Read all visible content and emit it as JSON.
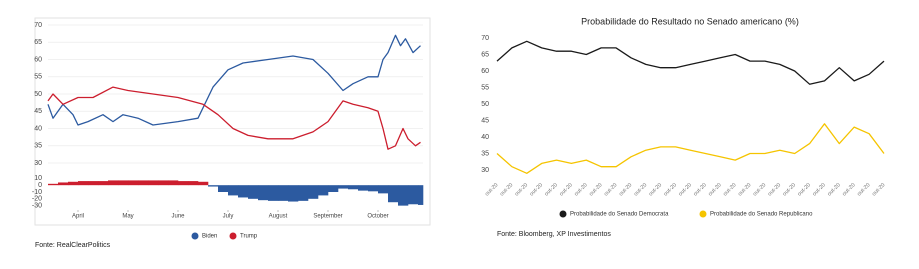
{
  "chart_data": [
    {
      "type": "line",
      "series": [
        {
          "name": "Biden",
          "color": "#2c5aa0",
          "x": [
            0.4,
            0.5,
            0.7,
            0.9,
            1.0,
            1.2,
            1.5,
            1.7,
            1.9,
            2.2,
            2.5,
            3.0,
            3.4,
            3.7,
            4.0,
            4.3,
            4.8,
            5.3,
            5.7,
            6.0,
            6.3,
            6.5,
            6.8,
            7.0,
            7.1,
            7.2,
            7.35,
            7.45,
            7.55,
            7.7,
            7.85
          ],
          "values": [
            47,
            43,
            47,
            44,
            41,
            42,
            44,
            42,
            44,
            43,
            41,
            42,
            43,
            52,
            57,
            59,
            60,
            61,
            60,
            56,
            51,
            53,
            55,
            55,
            60,
            62,
            67,
            64,
            66,
            62,
            64
          ]
        },
        {
          "name": "Trump",
          "color": "#cc1e2e",
          "x": [
            0.4,
            0.5,
            0.7,
            1.0,
            1.3,
            1.7,
            2.0,
            2.5,
            3.0,
            3.5,
            3.8,
            4.1,
            4.4,
            4.8,
            5.3,
            5.7,
            6.0,
            6.3,
            6.5,
            6.8,
            7.0,
            7.1,
            7.2,
            7.35,
            7.5,
            7.6,
            7.75,
            7.85
          ],
          "values": [
            48,
            50,
            47,
            49,
            49,
            52,
            51,
            50,
            49,
            47,
            44,
            40,
            38,
            37,
            37,
            39,
            42,
            48,
            47,
            46,
            45,
            40,
            34,
            35,
            40,
            37,
            35,
            36
          ]
        }
      ],
      "xlim": [
        0.4,
        7.9
      ],
      "xticks": [
        {
          "value": 1,
          "label": "April"
        },
        {
          "value": 2,
          "label": "May"
        },
        {
          "value": 3,
          "label": "June"
        },
        {
          "value": 4,
          "label": "July"
        },
        {
          "value": 5,
          "label": "August"
        },
        {
          "value": 6,
          "label": "September"
        },
        {
          "value": 7,
          "label": "October"
        }
      ],
      "ylim": [
        30,
        70
      ],
      "yticks": [
        30,
        35,
        40,
        45,
        50,
        55,
        60,
        65,
        70
      ],
      "grid": true,
      "legend": "bottom",
      "source": "Fonte: RealClearPolitics"
    },
    {
      "type": "bar",
      "x": [
        0.4,
        0.6,
        0.8,
        1.0,
        1.2,
        1.4,
        1.6,
        1.8,
        2.0,
        2.2,
        2.4,
        2.6,
        2.8,
        3.0,
        3.2,
        3.4,
        3.6,
        3.8,
        4.0,
        4.2,
        4.4,
        4.6,
        4.8,
        5.0,
        5.2,
        5.4,
        5.6,
        5.8,
        6.0,
        6.2,
        6.4,
        6.6,
        6.8,
        7.0,
        7.2,
        7.4,
        7.6,
        7.8
      ],
      "values": [
        2,
        4,
        5,
        6,
        6,
        6,
        7,
        7,
        7,
        7,
        7,
        7,
        7,
        6,
        6,
        5,
        -2,
        -10,
        -15,
        -18,
        -20,
        -22,
        -23,
        -23,
        -24,
        -23,
        -20,
        -15,
        -10,
        -5,
        -6,
        -8,
        -9,
        -12,
        -25,
        -30,
        -28,
        -29
      ],
      "color": "#cc1e2e",
      "negative_color": "#2c5aa0",
      "xlim": [
        0.4,
        7.9
      ],
      "ylim": [
        -32,
        12
      ],
      "yticks": [
        10,
        0,
        -10,
        -20,
        -30
      ]
    },
    {
      "type": "line",
      "title": "Probabilidade do Resultado no Senado americano (%)",
      "categories": [
        "out-20",
        "out-20",
        "out-20",
        "out-20",
        "out-20",
        "out-20",
        "out-20",
        "out-20",
        "out-20",
        "out-20",
        "out-20",
        "out-20",
        "out-20",
        "out-20",
        "out-20",
        "out-20",
        "out-20",
        "out-20",
        "out-20",
        "out-20",
        "out-20",
        "out-20",
        "out-20",
        "out-20",
        "out-20",
        "out-20",
        "out-20"
      ],
      "series": [
        {
          "name": "Probabilidade do Senado Democrata",
          "color": "#1a1a1a",
          "values": [
            63,
            67,
            69,
            67,
            66,
            66,
            65,
            67,
            67,
            64,
            62,
            61,
            61,
            62,
            63,
            64,
            65,
            63,
            63,
            62,
            60,
            56,
            57,
            61,
            57,
            59,
            63
          ]
        },
        {
          "name": "Probabilidade do Senado Republicano",
          "color": "#f5c400",
          "values": [
            35,
            31,
            29,
            32,
            33,
            32,
            33,
            31,
            31,
            34,
            36,
            37,
            37,
            36,
            35,
            34,
            33,
            35,
            35,
            36,
            35,
            38,
            44,
            38,
            43,
            41,
            35
          ]
        }
      ],
      "ylim": [
        30,
        70
      ],
      "yticks": [
        30,
        35,
        40,
        45,
        50,
        55,
        60,
        65,
        70
      ],
      "grid": false,
      "legend": "bottom",
      "source": "Fonte: Bloomberg, XP Investimentos"
    }
  ]
}
